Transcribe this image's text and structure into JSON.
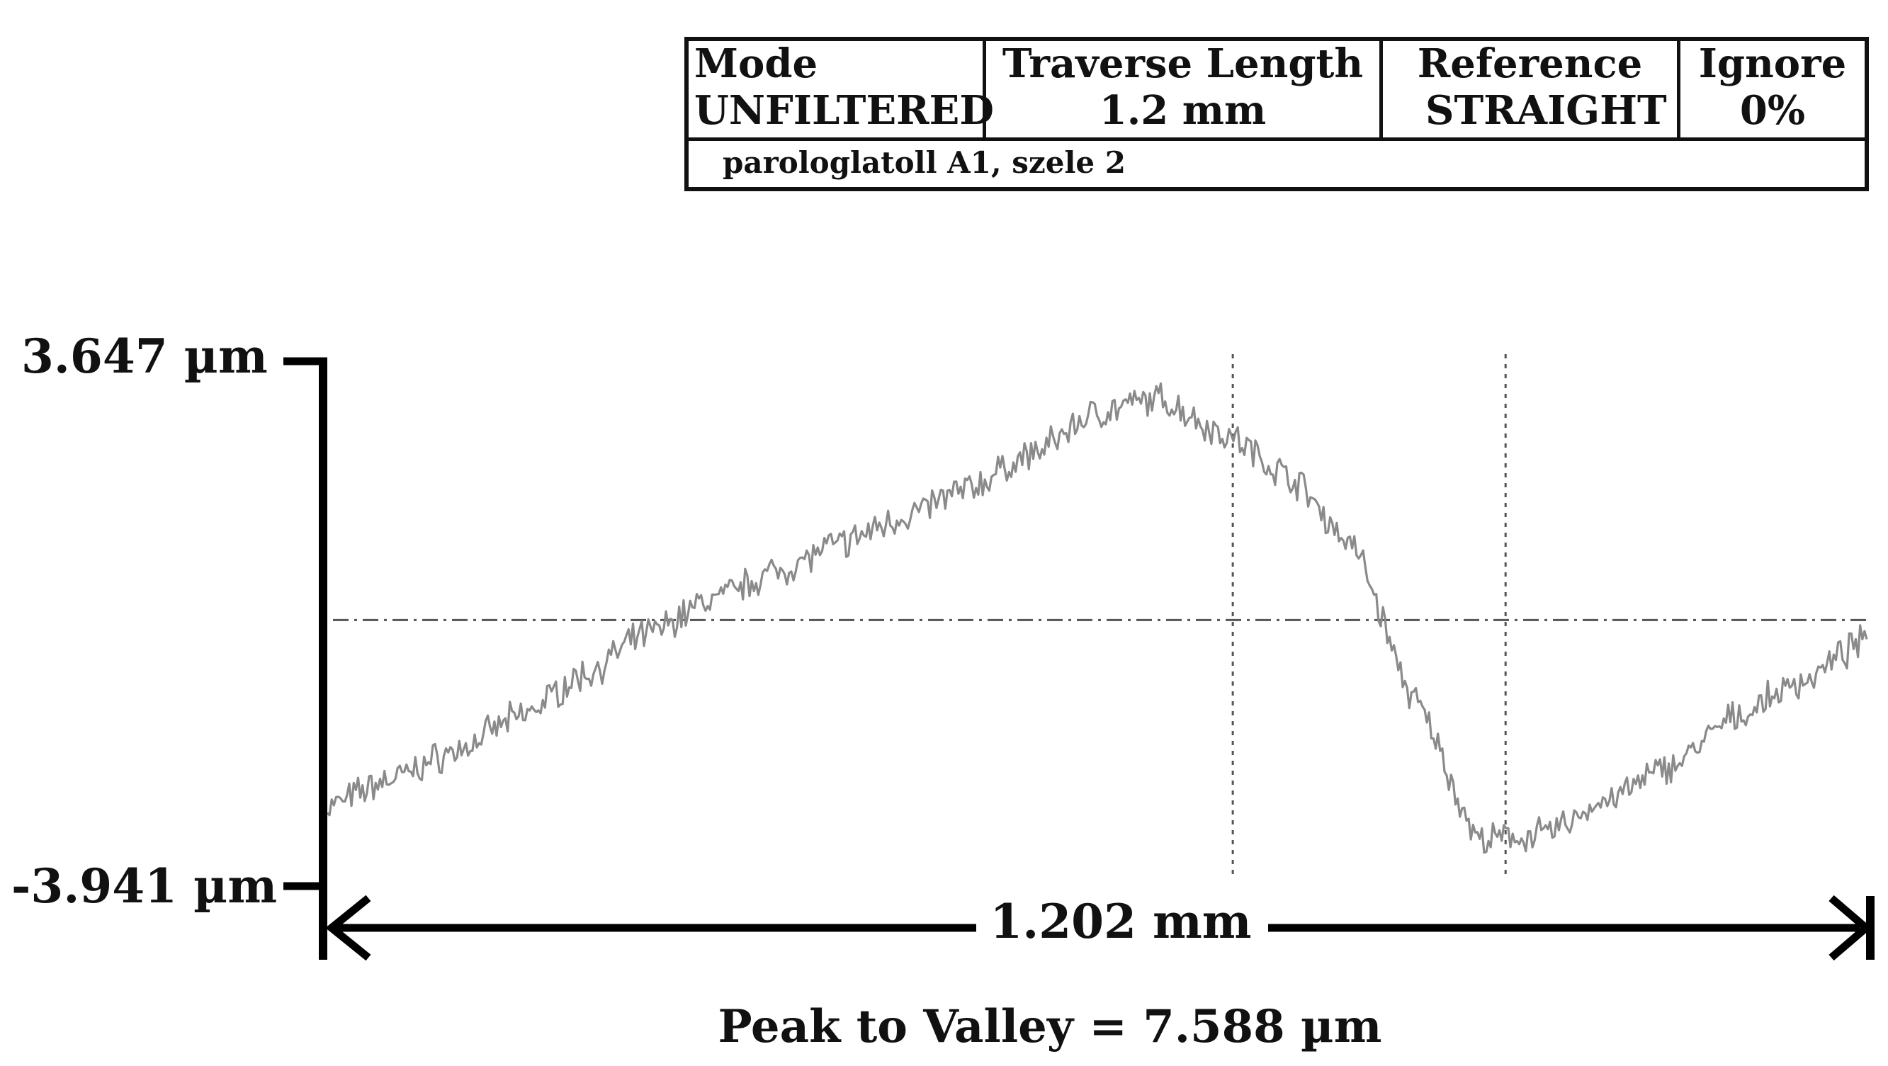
{
  "header": {
    "columns": [
      {
        "label": "Mode",
        "value": "UNFILTERED"
      },
      {
        "label": "Traverse Length",
        "value": "1.2 mm"
      },
      {
        "label": "Reference",
        "value": "STRAIGHT"
      },
      {
        "label": "Ignore",
        "value": "0%"
      }
    ],
    "sample": "parologlatoll A1, szele 2"
  },
  "chart_data": {
    "type": "line",
    "title": "",
    "xlabel": "",
    "ylabel": "",
    "y_max_label": "3.647 µm",
    "y_min_label": "-3.941 µm",
    "length_label": "1.202 mm",
    "peak_to_valley": "Peak to Valley = 7.588 µm",
    "xlim": [
      0,
      1.202
    ],
    "ylim": [
      -3.941,
      3.647
    ],
    "x_unit": "mm",
    "y_unit": "µm",
    "grid": false,
    "reference_line_y": -0.1,
    "cursor_x": [
      0.707,
      0.92
    ],
    "series": [
      {
        "x": [
          0.0,
          0.05,
          0.1,
          0.15,
          0.2,
          0.25,
          0.3,
          0.35,
          0.4,
          0.45,
          0.5,
          0.55,
          0.6,
          0.65,
          0.7,
          0.75,
          0.8,
          0.85,
          0.9,
          0.95,
          1.0,
          1.05,
          1.1,
          1.15,
          1.202
        ],
        "y": [
          -2.8,
          -2.4,
          -2.0,
          -1.5,
          -0.9,
          -0.3,
          0.2,
          0.6,
          1.0,
          1.4,
          1.8,
          2.3,
          2.9,
          3.1,
          2.6,
          2.0,
          1.0,
          -1.3,
          -3.3,
          -3.2,
          -2.7,
          -2.2,
          -1.5,
          -1.0,
          -0.4
        ]
      }
    ]
  }
}
